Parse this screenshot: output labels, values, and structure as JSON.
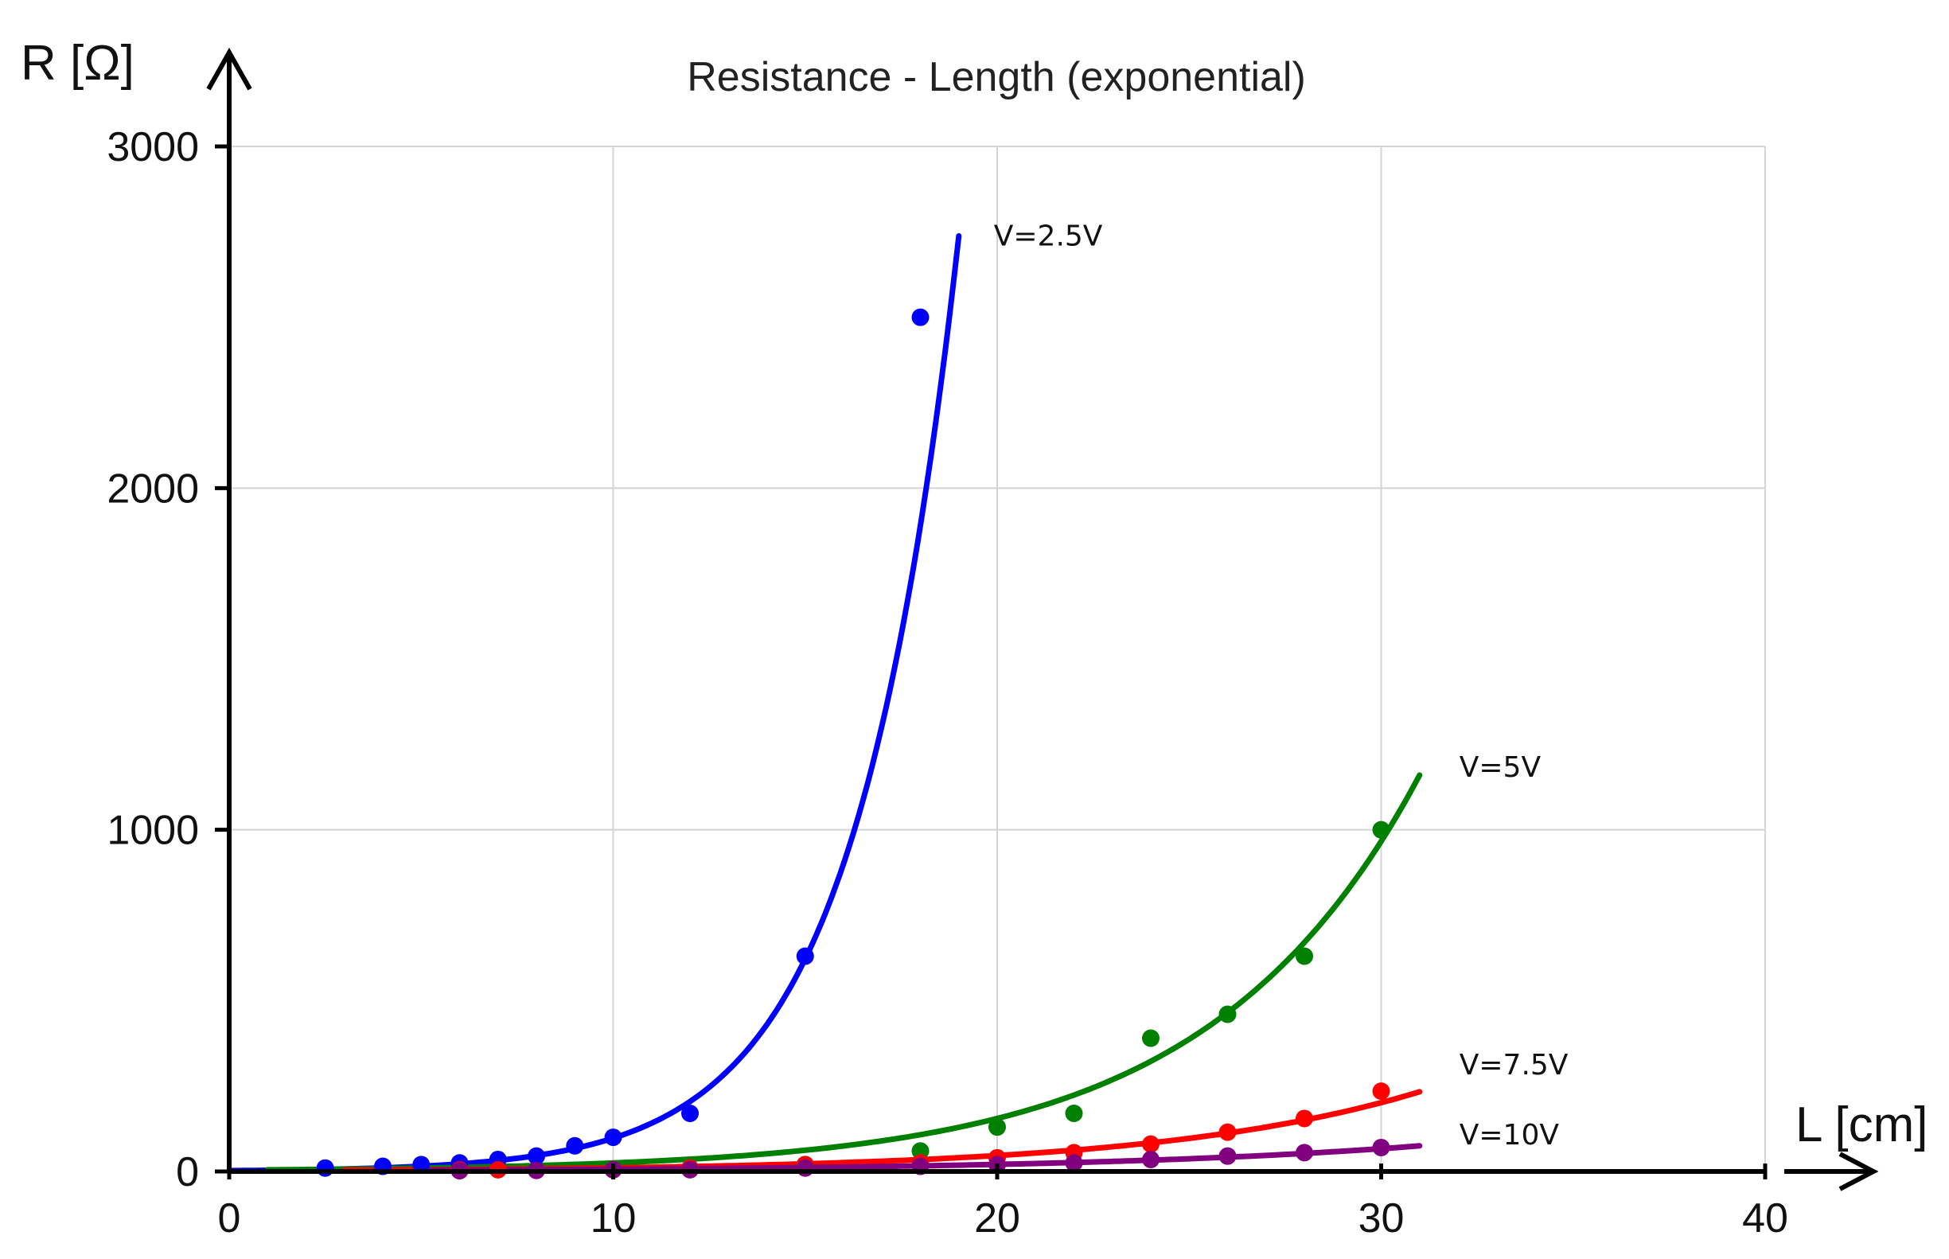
{
  "chart_data": {
    "type": "scatter",
    "title": "Resistance - Length (exponential)",
    "xlabel": "L [cm]",
    "ylabel": "R [Ω]",
    "xlim": [
      0,
      40
    ],
    "ylim": [
      0,
      3000
    ],
    "x_ticks": [
      "0",
      "10",
      "20",
      "30",
      "40"
    ],
    "y_ticks": [
      "0",
      "1000",
      "2000",
      "3000"
    ],
    "grid": true,
    "series": [
      {
        "name": "V=2.5V",
        "color": "#0000ff",
        "points": [
          [
            2.5,
            10
          ],
          [
            4,
            15
          ],
          [
            5,
            20
          ],
          [
            6,
            25
          ],
          [
            7,
            35
          ],
          [
            8,
            45
          ],
          [
            9,
            75
          ],
          [
            10,
            100
          ],
          [
            12,
            170
          ],
          [
            15,
            630
          ],
          [
            18,
            2500
          ]
        ],
        "fit": {
          "a": 2.4,
          "b": 0.3705,
          "x_range": [
            0,
            19
          ]
        }
      },
      {
        "name": "V=5V",
        "color": "#008000",
        "points": [
          [
            15,
            20
          ],
          [
            18,
            60
          ],
          [
            20,
            130
          ],
          [
            22,
            170
          ],
          [
            24,
            390
          ],
          [
            26,
            460
          ],
          [
            28,
            630
          ],
          [
            30,
            1000
          ]
        ],
        "fit": {
          "a": 4.0,
          "b": 0.1829,
          "x_range": [
            1,
            31
          ]
        }
      },
      {
        "name": "V=7.5V",
        "color": "#ff0000",
        "points": [
          [
            6,
            5
          ],
          [
            7,
            5
          ],
          [
            10,
            5
          ],
          [
            12,
            10
          ],
          [
            15,
            20
          ],
          [
            18,
            25
          ],
          [
            20,
            40
          ],
          [
            22,
            55
          ],
          [
            24,
            80
          ],
          [
            26,
            115
          ],
          [
            28,
            155
          ],
          [
            30,
            235
          ]
        ],
        "fit": {
          "a": 2.5,
          "b": 0.1463,
          "x_range": [
            3,
            31
          ]
        }
      },
      {
        "name": "V=10V",
        "color": "#800080",
        "points": [
          [
            6,
            2
          ],
          [
            8,
            3
          ],
          [
            10,
            5
          ],
          [
            12,
            5
          ],
          [
            15,
            10
          ],
          [
            18,
            15
          ],
          [
            20,
            20
          ],
          [
            22,
            25
          ],
          [
            24,
            35
          ],
          [
            26,
            45
          ],
          [
            28,
            55
          ],
          [
            30,
            70
          ]
        ],
        "fit": {
          "a": 2.0,
          "b": 0.1169,
          "x_range": [
            5,
            31
          ]
        }
      }
    ]
  }
}
